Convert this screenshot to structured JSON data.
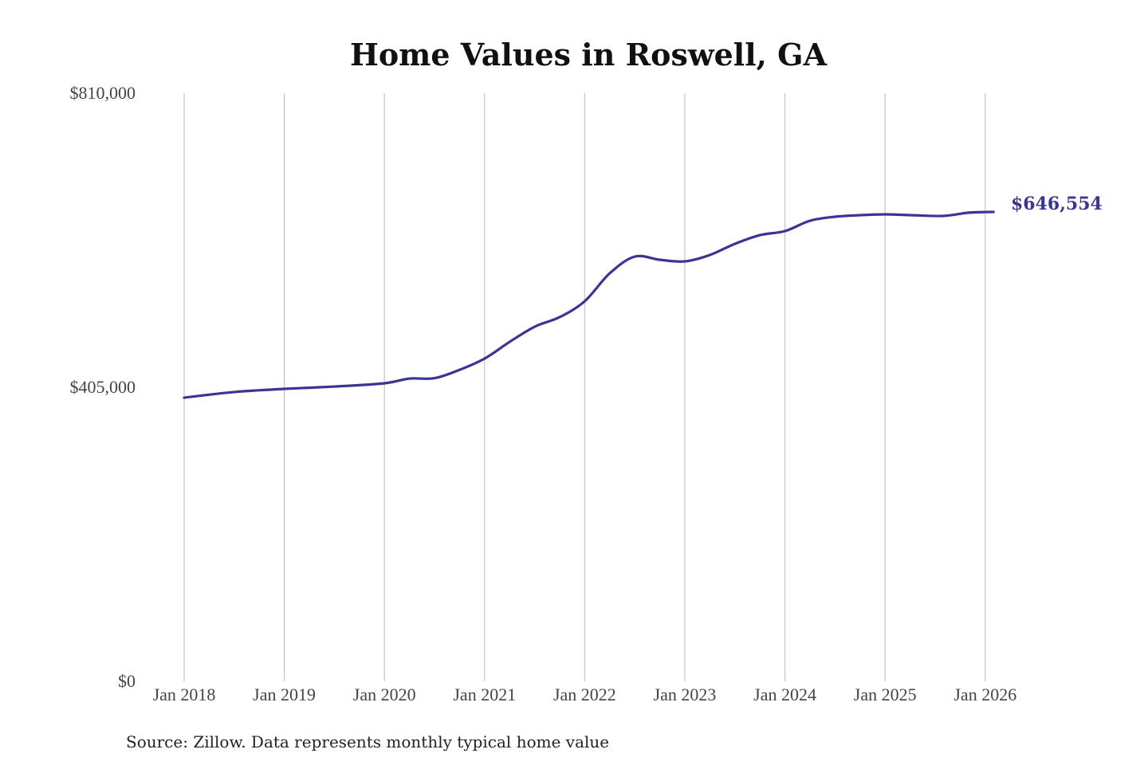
{
  "chart_data": {
    "type": "line",
    "title": "Home Values in Roswell, GA",
    "source": "Source: Zillow. Data represents monthly typical home value",
    "xlabel": "",
    "ylabel": "",
    "ylim": [
      0,
      810000
    ],
    "y_ticks": [
      {
        "value": 0,
        "label": "$0"
      },
      {
        "value": 405000,
        "label": "$405,000"
      },
      {
        "value": 810000,
        "label": "$810,000"
      }
    ],
    "x_ticks": [
      {
        "value": "2018-01",
        "label": "Jan 2018"
      },
      {
        "value": "2019-01",
        "label": "Jan 2019"
      },
      {
        "value": "2020-01",
        "label": "Jan 2020"
      },
      {
        "value": "2021-01",
        "label": "Jan 2021"
      },
      {
        "value": "2022-01",
        "label": "Jan 2022"
      },
      {
        "value": "2023-01",
        "label": "Jan 2023"
      },
      {
        "value": "2024-01",
        "label": "Jan 2024"
      },
      {
        "value": "2025-01",
        "label": "Jan 2025"
      },
      {
        "value": "2026-01",
        "label": "Jan 2026"
      }
    ],
    "grid": "vertical",
    "line_color": "#3a3495",
    "end_label": "$646,554",
    "points": [
      {
        "x": "2018-01",
        "y": 390700
      },
      {
        "x": "2018-07",
        "y": 398500
      },
      {
        "x": "2019-01",
        "y": 402800
      },
      {
        "x": "2019-07",
        "y": 406000
      },
      {
        "x": "2020-01",
        "y": 410500
      },
      {
        "x": "2020-04",
        "y": 417000
      },
      {
        "x": "2020-07",
        "y": 417500
      },
      {
        "x": "2020-10",
        "y": 429000
      },
      {
        "x": "2021-01",
        "y": 444500
      },
      {
        "x": "2021-04",
        "y": 467500
      },
      {
        "x": "2021-07",
        "y": 488400
      },
      {
        "x": "2021-10",
        "y": 501600
      },
      {
        "x": "2022-01",
        "y": 523500
      },
      {
        "x": "2022-04",
        "y": 562000
      },
      {
        "x": "2022-07",
        "y": 585000
      },
      {
        "x": "2022-10",
        "y": 580600
      },
      {
        "x": "2023-01",
        "y": 578400
      },
      {
        "x": "2023-04",
        "y": 587200
      },
      {
        "x": "2023-07",
        "y": 602600
      },
      {
        "x": "2023-10",
        "y": 614600
      },
      {
        "x": "2024-01",
        "y": 620100
      },
      {
        "x": "2024-04",
        "y": 634400
      },
      {
        "x": "2024-07",
        "y": 639900
      },
      {
        "x": "2024-10",
        "y": 642100
      },
      {
        "x": "2025-01",
        "y": 643200
      },
      {
        "x": "2025-04",
        "y": 642100
      },
      {
        "x": "2025-08",
        "y": 641000
      },
      {
        "x": "2025-11",
        "y": 645500
      },
      {
        "x": "2026-02",
        "y": 646554
      }
    ]
  }
}
